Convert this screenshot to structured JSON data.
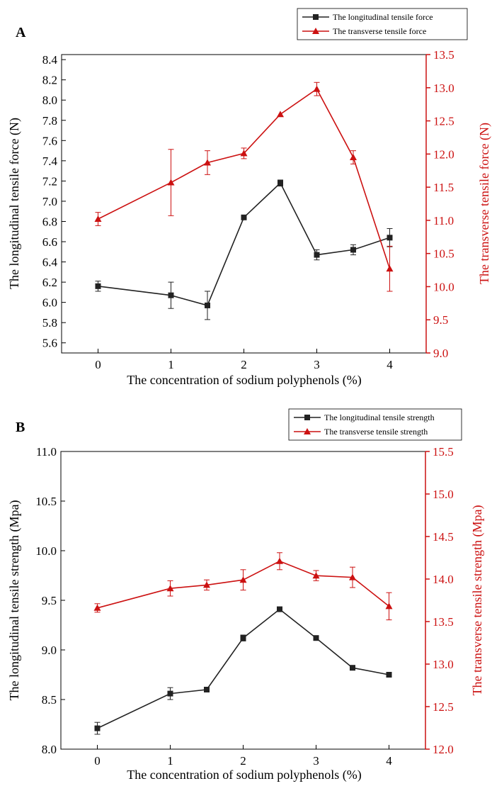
{
  "colors": {
    "black_series": "#222222",
    "red_series": "#cc1111",
    "axis_black": "#000000"
  },
  "panels": [
    {
      "panel_label": "A",
      "legend": [
        "The longitudinal tensile force",
        "The transverse tensile force"
      ],
      "xlabel": "The concentration of sodium polyphenols (%)",
      "ylabel_left": "The longitudinal tensile force (N)",
      "ylabel_right": "The transverse tensile force (N)"
    },
    {
      "panel_label": "B",
      "legend": [
        "The longitudinal tensile strength",
        "The transverse tensile strength"
      ],
      "xlabel": "The concentration of sodium polyphenols (%)",
      "ylabel_left": "The longitudinal tensile strength (Mpa)",
      "ylabel_right": "The transverse tensile strength (Mpa)"
    }
  ],
  "chart_data": [
    {
      "type": "line",
      "panel": "A",
      "xlabel": "The concentration of sodium polyphenols (%)",
      "ylabel": "The longitudinal tensile force (N)",
      "ylabel_right": "The transverse tensile force (N)",
      "xlim": [
        -0.5,
        4.5
      ],
      "ylim": [
        5.5,
        8.45
      ],
      "ylim_right": [
        9.0,
        13.5
      ],
      "x_ticks": [
        "0",
        "1",
        "2",
        "3",
        "4"
      ],
      "y_ticks": [
        "5.6",
        "5.8",
        "6.0",
        "6.2",
        "6.4",
        "6.6",
        "6.8",
        "7.0",
        "7.2",
        "7.4",
        "7.6",
        "7.8",
        "8.0",
        "8.2",
        "8.4"
      ],
      "y_ticks_right": [
        "9.0",
        "9.5",
        "10.0",
        "10.5",
        "11.0",
        "11.5",
        "12.0",
        "12.5",
        "13.0",
        "13.5"
      ],
      "x": [
        0,
        1,
        1.5,
        2,
        2.5,
        3,
        3.5,
        4
      ],
      "series": [
        {
          "name": "The longitudinal tensile force",
          "axis": "left",
          "color": "#222222",
          "marker": "square",
          "values": [
            6.16,
            6.07,
            5.97,
            6.84,
            7.18,
            6.47,
            6.52,
            6.64
          ],
          "errors": [
            0.05,
            0.13,
            0.14,
            0.0,
            0.03,
            0.05,
            0.05,
            0.09
          ]
        },
        {
          "name": "The transverse tensile force",
          "axis": "right",
          "color": "#cc1111",
          "marker": "triangle",
          "values": [
            11.02,
            11.57,
            11.87,
            12.01,
            12.6,
            12.98,
            11.95,
            10.27
          ],
          "errors": [
            0.1,
            0.5,
            0.18,
            0.08,
            0.0,
            0.1,
            0.1,
            0.34
          ]
        }
      ],
      "legend_position": "top-right",
      "grid": false
    },
    {
      "type": "line",
      "panel": "B",
      "xlabel": "The concentration of sodium polyphenols (%)",
      "ylabel": "The longitudinal tensile strength (Mpa)",
      "ylabel_right": "The transverse tensile strength (Mpa)",
      "xlim": [
        -0.5,
        4.5
      ],
      "ylim": [
        8.0,
        11.0
      ],
      "ylim_right": [
        12.0,
        15.5
      ],
      "x_ticks": [
        "0",
        "1",
        "2",
        "3",
        "4"
      ],
      "y_ticks": [
        "8.0",
        "8.5",
        "9.0",
        "9.5",
        "10.0",
        "10.5",
        "11.0"
      ],
      "y_ticks_right": [
        "12.0",
        "12.5",
        "13.0",
        "13.5",
        "14.0",
        "14.5",
        "15.0",
        "15.5"
      ],
      "x": [
        0,
        1,
        1.5,
        2,
        2.5,
        3,
        3.5,
        4
      ],
      "series": [
        {
          "name": "The longitudinal tensile strength",
          "axis": "left",
          "color": "#222222",
          "marker": "square",
          "values": [
            8.21,
            8.56,
            8.6,
            9.12,
            9.41,
            9.12,
            8.82,
            8.75
          ],
          "errors": [
            0.06,
            0.06,
            0.0,
            0.03,
            0.0,
            0.0,
            0.0,
            0.0
          ]
        },
        {
          "name": "The transverse tensile strength",
          "axis": "right",
          "color": "#cc1111",
          "marker": "triangle",
          "values": [
            13.66,
            13.89,
            13.93,
            13.99,
            14.21,
            14.04,
            14.02,
            13.68
          ],
          "errors": [
            0.05,
            0.09,
            0.06,
            0.12,
            0.1,
            0.06,
            0.12,
            0.16
          ]
        }
      ],
      "legend_position": "top-right",
      "grid": false
    }
  ]
}
